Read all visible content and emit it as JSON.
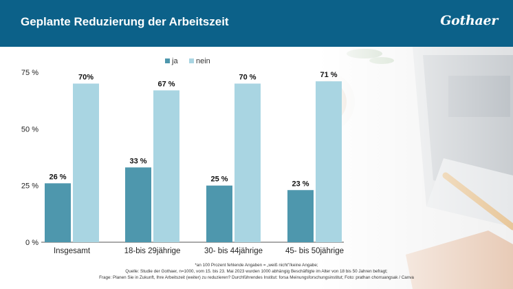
{
  "header": {
    "title": "Geplante Reduzierung der Arbeitszeit",
    "logo_text": "Gothaer",
    "background_color": "#0c6189"
  },
  "chart_data": {
    "type": "bar",
    "categories": [
      "Insgesamt",
      "18-bis 29jährige",
      "30- bis 44jährige",
      "45- bis 50jährige"
    ],
    "series": [
      {
        "name": "ja",
        "values": [
          26,
          33,
          25,
          23
        ],
        "labels": [
          "26 %",
          "33 %",
          "25 %",
          "23 %"
        ],
        "color": "#4e97ad"
      },
      {
        "name": "nein",
        "values": [
          70,
          67,
          70,
          71
        ],
        "labels": [
          "70%",
          "67 %",
          "70 %",
          "71 %"
        ],
        "color": "#a9d5e2"
      }
    ],
    "yticks": [
      0,
      25,
      50,
      75
    ],
    "ytick_labels": [
      "0 %",
      "25 %",
      "50 %",
      "75 %"
    ],
    "ylim": [
      0,
      75
    ],
    "xlabel": "",
    "ylabel": "",
    "grid": false,
    "legend_position": "top-center"
  },
  "footnotes": {
    "note": "*an 100 Prozent fehlende Angaben = „weiß nicht\"/keine Angabe;",
    "source": "Quelle: Studie der Gothaer, n=1000, vom 15. bis 23. Mai 2023 wurden 1000 abhängig Beschäftigte im Alter von 18 bis 50 Jahren befragt;",
    "question": "Frage: Planen Sie in Zukunft, Ihre Arbeitszeit (weiter) zu reduzieren? Durchführendes Institut: forsa Meinungsforschungsinstitut; Foto: prathan chorruangsak / Canva"
  }
}
